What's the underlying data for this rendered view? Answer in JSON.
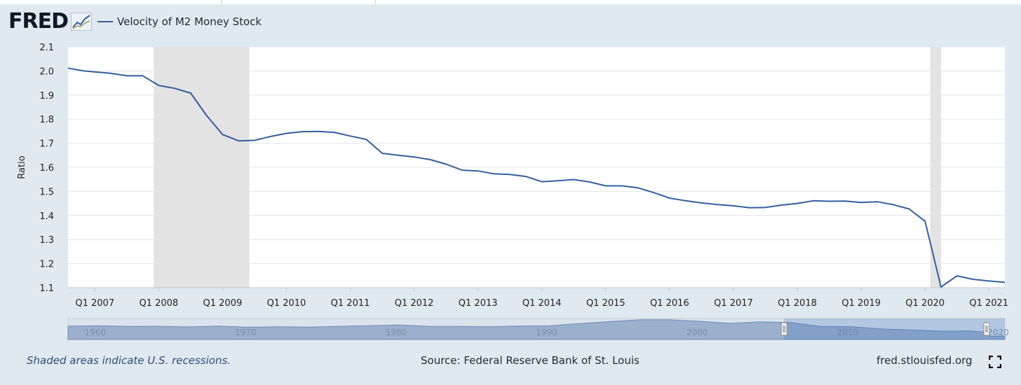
{
  "header": {
    "logo_text": "FRED",
    "legend_label": "Velocity of M2 Money Stock",
    "logo_icon": "chart-line-icon"
  },
  "chart_data": {
    "type": "line",
    "title": "Velocity of M2 Money Stock",
    "ylabel": "Ratio",
    "xlabel": "",
    "ylim": [
      1.1,
      2.1
    ],
    "yticks": [
      "2.1",
      "2.0",
      "1.9",
      "1.8",
      "1.7",
      "1.6",
      "1.5",
      "1.4",
      "1.3",
      "1.2",
      "1.1"
    ],
    "xlim": [
      2006.58,
      2021.25
    ],
    "xticks": [
      {
        "value": 2007.0,
        "label": "Q1 2007"
      },
      {
        "value": 2008.0,
        "label": "Q1 2008"
      },
      {
        "value": 2009.0,
        "label": "Q1 2009"
      },
      {
        "value": 2010.0,
        "label": "Q1 2010"
      },
      {
        "value": 2011.0,
        "label": "Q1 2011"
      },
      {
        "value": 2012.0,
        "label": "Q1 2012"
      },
      {
        "value": 2013.0,
        "label": "Q1 2013"
      },
      {
        "value": 2014.0,
        "label": "Q1 2014"
      },
      {
        "value": 2015.0,
        "label": "Q1 2015"
      },
      {
        "value": 2016.0,
        "label": "Q1 2016"
      },
      {
        "value": 2017.0,
        "label": "Q1 2017"
      },
      {
        "value": 2018.0,
        "label": "Q1 2018"
      },
      {
        "value": 2019.0,
        "label": "Q1 2019"
      },
      {
        "value": 2020.0,
        "label": "Q1 2020"
      },
      {
        "value": 2021.0,
        "label": "Q1 2021"
      }
    ],
    "recessions": [
      {
        "start": 2007.92,
        "end": 2009.42
      },
      {
        "start": 2020.08,
        "end": 2020.25
      }
    ],
    "series": [
      {
        "name": "Velocity of M2 Money Stock",
        "color": "#355f9c",
        "points": [
          [
            2006.58,
            2.012
          ],
          [
            2006.83,
            2.0
          ],
          [
            2007.0,
            1.996
          ],
          [
            2007.25,
            1.99
          ],
          [
            2007.5,
            1.98
          ],
          [
            2007.75,
            1.98
          ],
          [
            2008.0,
            1.94
          ],
          [
            2008.25,
            1.928
          ],
          [
            2008.5,
            1.908
          ],
          [
            2008.75,
            1.815
          ],
          [
            2009.0,
            1.736
          ],
          [
            2009.25,
            1.71
          ],
          [
            2009.5,
            1.712
          ],
          [
            2009.75,
            1.728
          ],
          [
            2010.0,
            1.741
          ],
          [
            2010.25,
            1.748
          ],
          [
            2010.5,
            1.749
          ],
          [
            2010.75,
            1.745
          ],
          [
            2011.0,
            1.73
          ],
          [
            2011.25,
            1.716
          ],
          [
            2011.5,
            1.658
          ],
          [
            2011.75,
            1.65
          ],
          [
            2012.0,
            1.643
          ],
          [
            2012.25,
            1.632
          ],
          [
            2012.5,
            1.613
          ],
          [
            2012.75,
            1.588
          ],
          [
            2013.0,
            1.585
          ],
          [
            2013.25,
            1.573
          ],
          [
            2013.5,
            1.57
          ],
          [
            2013.75,
            1.562
          ],
          [
            2014.0,
            1.54
          ],
          [
            2014.25,
            1.544
          ],
          [
            2014.5,
            1.549
          ],
          [
            2014.75,
            1.539
          ],
          [
            2015.0,
            1.523
          ],
          [
            2015.25,
            1.523
          ],
          [
            2015.5,
            1.515
          ],
          [
            2015.75,
            1.495
          ],
          [
            2016.0,
            1.472
          ],
          [
            2016.25,
            1.461
          ],
          [
            2016.5,
            1.452
          ],
          [
            2016.75,
            1.445
          ],
          [
            2017.0,
            1.44
          ],
          [
            2017.25,
            1.432
          ],
          [
            2017.5,
            1.433
          ],
          [
            2017.75,
            1.443
          ],
          [
            2018.0,
            1.45
          ],
          [
            2018.25,
            1.461
          ],
          [
            2018.5,
            1.459
          ],
          [
            2018.75,
            1.46
          ],
          [
            2019.0,
            1.454
          ],
          [
            2019.25,
            1.457
          ],
          [
            2019.5,
            1.445
          ],
          [
            2019.75,
            1.427
          ],
          [
            2020.0,
            1.376
          ],
          [
            2020.25,
            1.103
          ],
          [
            2020.5,
            1.149
          ],
          [
            2020.75,
            1.135
          ],
          [
            2021.0,
            1.128
          ],
          [
            2021.25,
            1.122
          ]
        ]
      }
    ],
    "navigator": {
      "labels": [
        "1960",
        "1970",
        "1980",
        "1990",
        "2000",
        "2010",
        "2020"
      ],
      "range_start": 1959.0,
      "range_end": 2021.25,
      "selected_start": 2006.58,
      "selected_end": 2021.25,
      "points": [
        [
          1959.0,
          1.76
        ],
        [
          1961.0,
          1.78
        ],
        [
          1963.0,
          1.74
        ],
        [
          1965.0,
          1.75
        ],
        [
          1967.0,
          1.71
        ],
        [
          1969.0,
          1.76
        ],
        [
          1971.0,
          1.69
        ],
        [
          1973.0,
          1.72
        ],
        [
          1975.0,
          1.7
        ],
        [
          1977.0,
          1.74
        ],
        [
          1979.0,
          1.79
        ],
        [
          1981.0,
          1.83
        ],
        [
          1983.0,
          1.74
        ],
        [
          1985.0,
          1.74
        ],
        [
          1987.0,
          1.72
        ],
        [
          1989.0,
          1.77
        ],
        [
          1991.0,
          1.78
        ],
        [
          1993.0,
          1.92
        ],
        [
          1995.0,
          2.05
        ],
        [
          1997.0,
          2.17
        ],
        [
          1999.0,
          2.17
        ],
        [
          2001.0,
          2.07
        ],
        [
          2003.0,
          1.94
        ],
        [
          2005.0,
          2.04
        ],
        [
          2007.0,
          1.99
        ],
        [
          2009.0,
          1.74
        ],
        [
          2011.0,
          1.73
        ],
        [
          2013.0,
          1.58
        ],
        [
          2015.0,
          1.52
        ],
        [
          2017.0,
          1.44
        ],
        [
          2019.0,
          1.45
        ],
        [
          2020.0,
          1.37
        ],
        [
          2020.25,
          1.1
        ],
        [
          2021.25,
          1.12
        ]
      ]
    }
  },
  "footer": {
    "note": "Shaded areas indicate U.S. recessions.",
    "source": "Source: Federal Reserve Bank of St. Louis",
    "url": "fred.stlouisfed.org",
    "fullscreen_icon": "fullscreen-icon"
  }
}
